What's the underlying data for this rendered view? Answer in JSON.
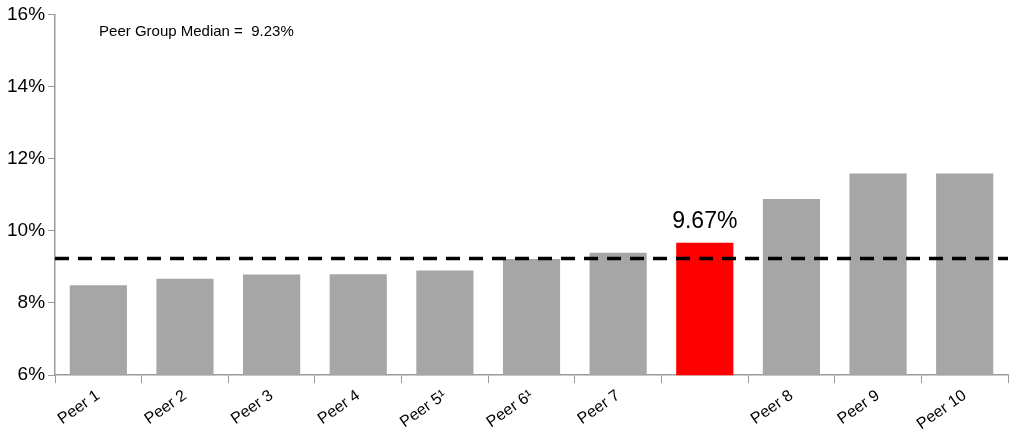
{
  "chart_data": {
    "type": "bar",
    "categories": [
      "Peer 1",
      "Peer 2",
      "Peer 3",
      "Peer 4",
      "Peer 5¹",
      "Peer 6¹",
      "Peer 7",
      null,
      "Peer 8",
      "Peer 9",
      "Peer 10"
    ],
    "values": [
      8.49,
      8.67,
      8.79,
      8.8,
      8.9,
      9.22,
      9.39,
      9.67,
      10.88,
      11.59,
      11.59
    ],
    "colors": [
      "#a6a6a6",
      "#a6a6a6",
      "#a6a6a6",
      "#a6a6a6",
      "#a6a6a6",
      "#a6a6a6",
      "#a6a6a6",
      "#ff0000",
      "#a6a6a6",
      "#a6a6a6",
      "#a6a6a6"
    ],
    "value_labels": [
      null,
      null,
      null,
      null,
      null,
      null,
      null,
      "9.67%",
      null,
      null,
      null
    ],
    "ylim": [
      6,
      16
    ],
    "yticks": [
      {
        "value": 6,
        "label": "6%"
      },
      {
        "value": 8,
        "label": "8%"
      },
      {
        "value": 10,
        "label": "10%"
      },
      {
        "value": 12,
        "label": "12%"
      },
      {
        "value": 14,
        "label": "14%"
      },
      {
        "value": 16,
        "label": "16%"
      }
    ],
    "ref_lines": [
      {
        "axis": "y",
        "value": 9.23,
        "label": "Peer Group Median =  9.23%",
        "color": "#000000",
        "line_style": "dashed"
      }
    ],
    "grid": false,
    "legend": false
  }
}
